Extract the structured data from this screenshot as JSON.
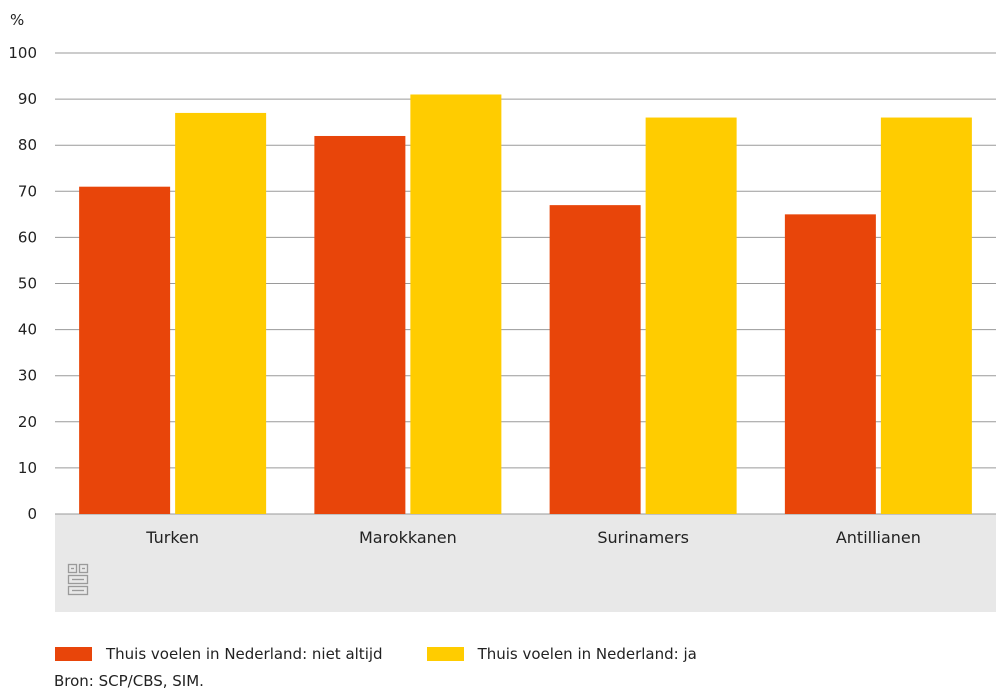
{
  "chart_data": {
    "type": "bar",
    "ylabel": "%",
    "ylim": [
      0,
      100
    ],
    "yticks": [
      0,
      10,
      20,
      30,
      40,
      50,
      60,
      70,
      80,
      90,
      100
    ],
    "grid": true,
    "categories": [
      "Turken",
      "Marokkanen",
      "Surinamers",
      "Antillianen"
    ],
    "series": [
      {
        "name": "Thuis voelen in Nederland: niet altijd",
        "color": "#e8450a",
        "values": [
          71,
          82,
          67,
          65
        ]
      },
      {
        "name": "Thuis voelen in Nederland: ja",
        "color": "#ffcc00",
        "values": [
          87,
          91,
          86,
          86
        ]
      }
    ],
    "legend_position": "bottom-left"
  },
  "logo_icon": "cbs-logo-icon",
  "source": "Bron: SCP/CBS, SIM."
}
